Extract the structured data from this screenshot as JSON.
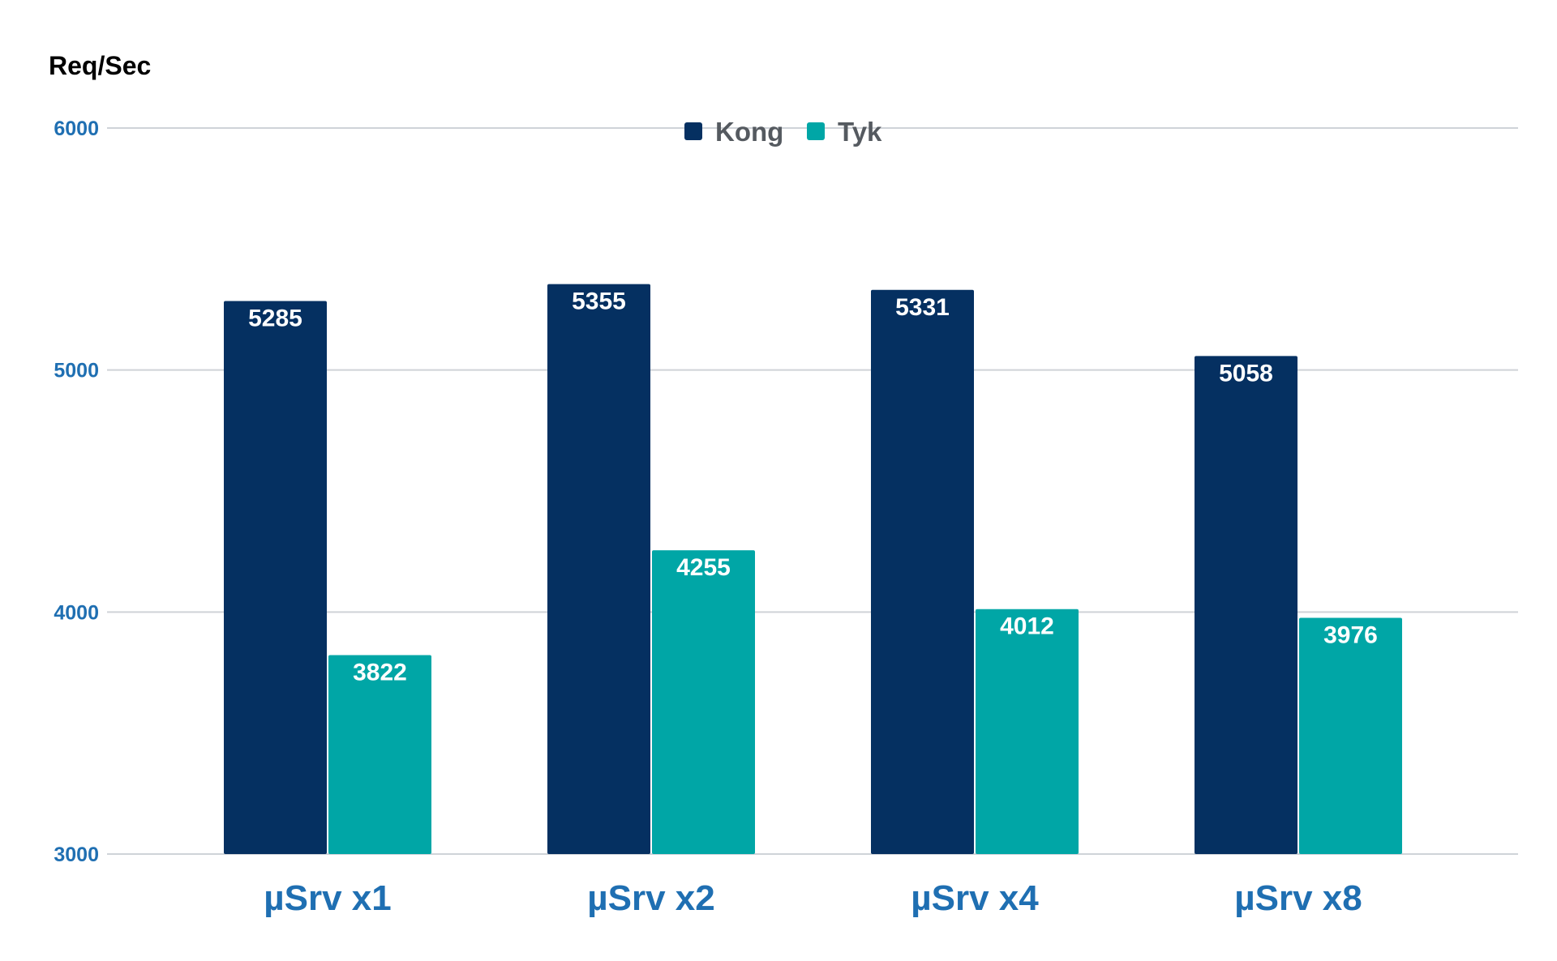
{
  "chart_data": {
    "type": "bar",
    "title": "",
    "ylabel": "Req/Sec",
    "xlabel": "",
    "ylim": [
      3000,
      6000
    ],
    "yticks": [
      3000,
      4000,
      5000,
      6000
    ],
    "grid": true,
    "legend_position": "top-center",
    "categories": [
      "µSrv x1",
      "µSrv x2",
      "µSrv x4",
      "µSrv x8"
    ],
    "series": [
      {
        "name": "Kong",
        "color": "#053061",
        "values": [
          5285,
          5355,
          5331,
          5058
        ]
      },
      {
        "name": "Tyk",
        "color": "#00a6a6",
        "values": [
          3822,
          4255,
          4012,
          3976
        ]
      }
    ]
  }
}
